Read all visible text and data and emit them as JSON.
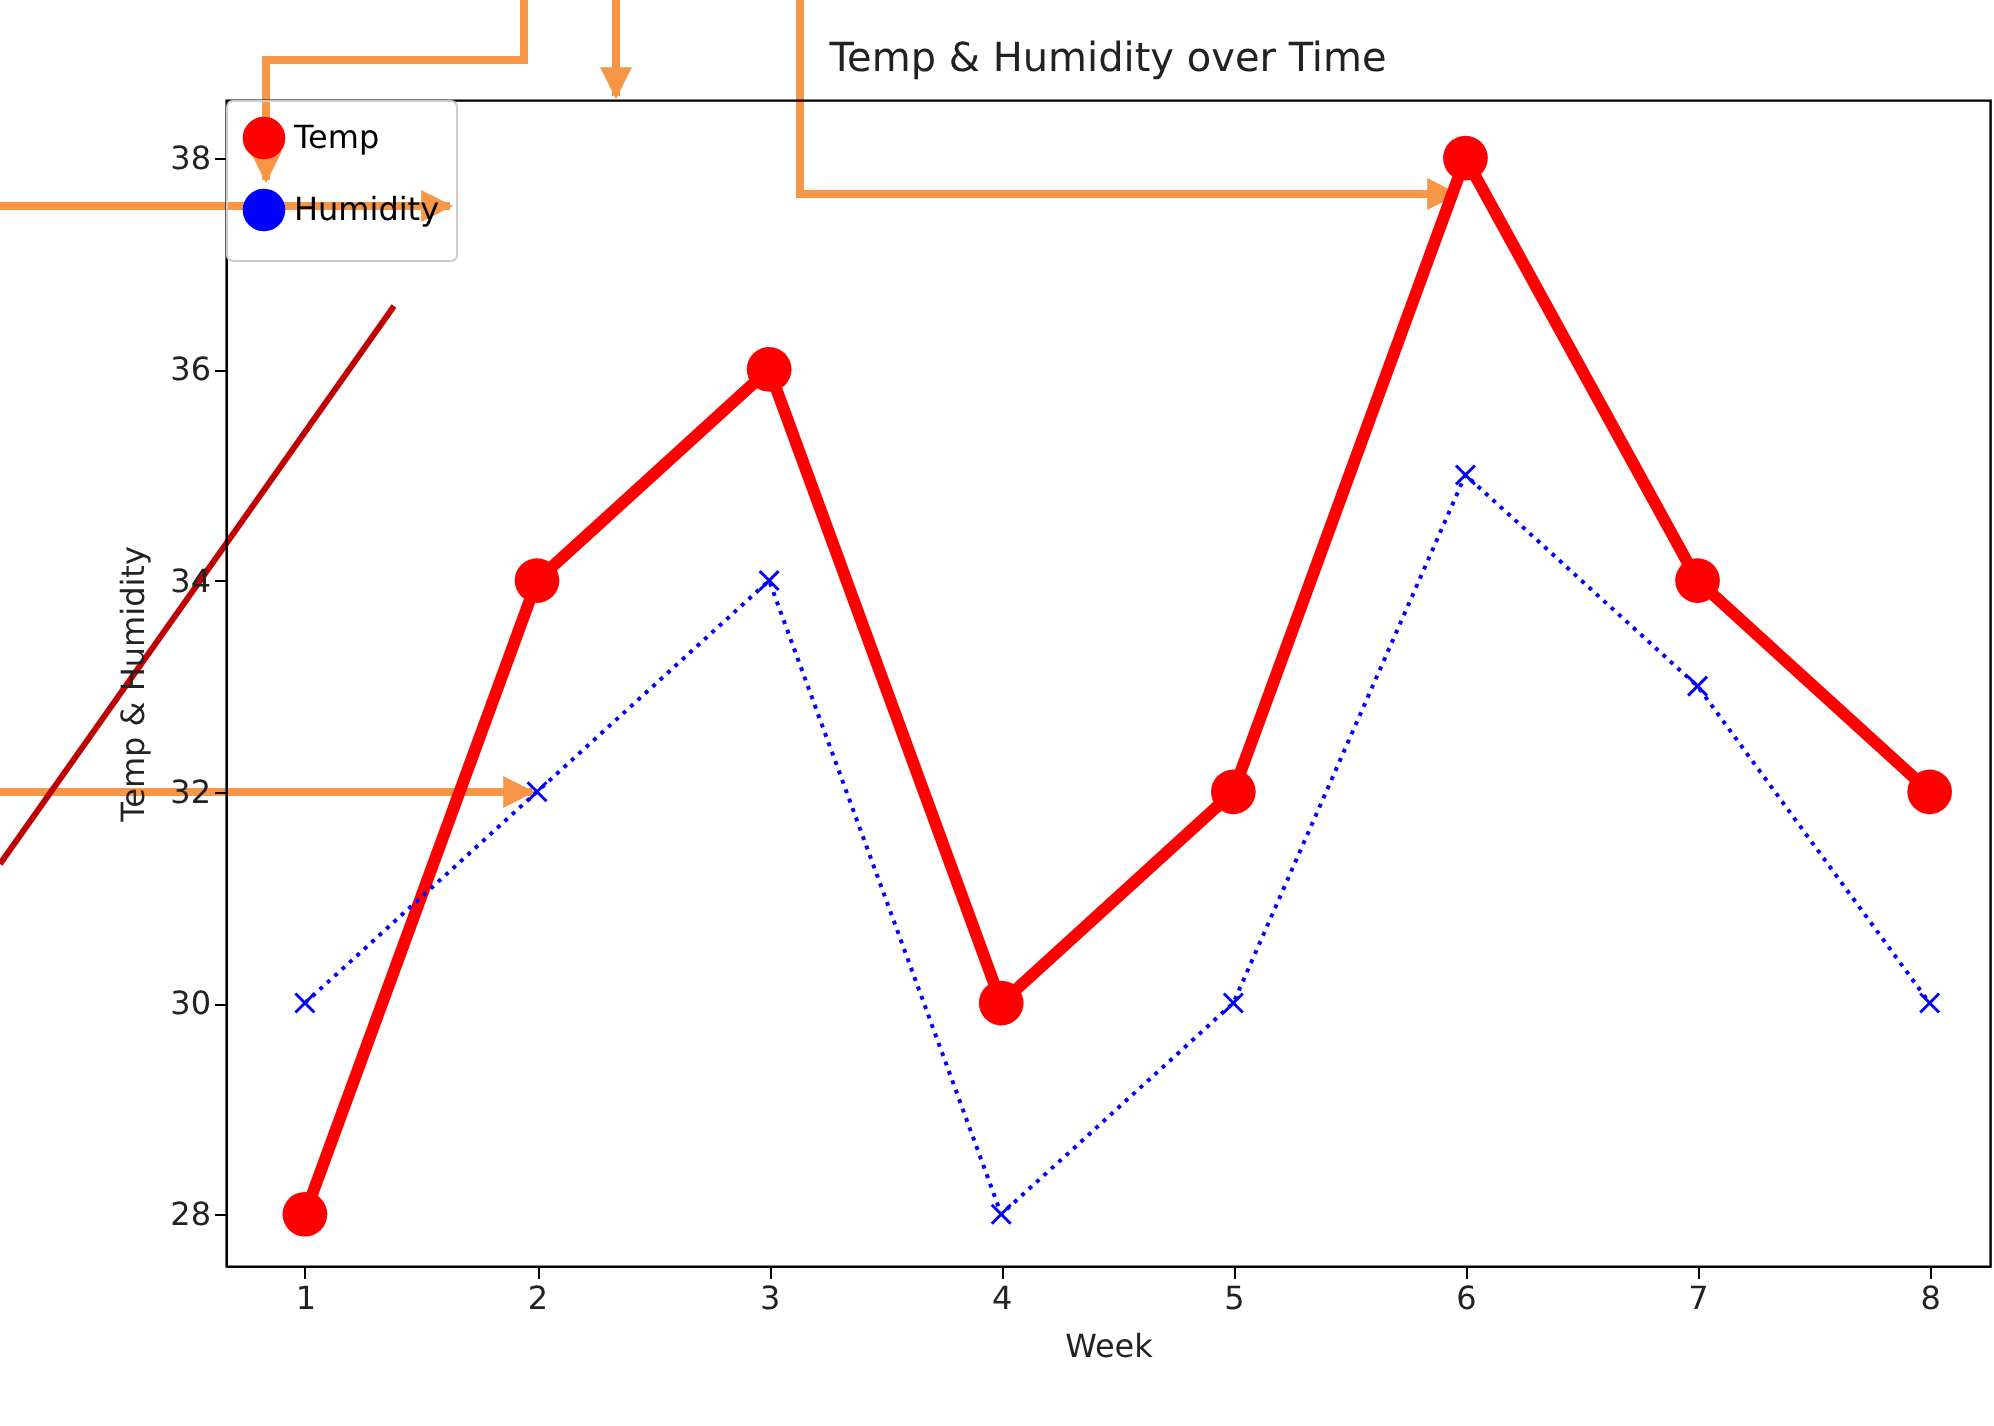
{
  "chart_data": {
    "type": "line",
    "title": "Temp & Humidity over Time",
    "xlabel": "Week",
    "ylabel": "Temp & Humidity",
    "x": [
      1,
      2,
      3,
      4,
      5,
      6,
      7,
      8
    ],
    "series": [
      {
        "name": "Temp",
        "color": "#ff0000",
        "values": [
          28,
          34,
          36,
          30,
          32,
          38,
          34,
          32
        ],
        "marker": "circle",
        "line_style": "solid"
      },
      {
        "name": "Humidity",
        "color": "#0000ff",
        "values": [
          30,
          32,
          34,
          28,
          30,
          35,
          33,
          30
        ],
        "marker": "cross",
        "line_style": "dotted"
      }
    ],
    "xlim": [
      0.66,
      8.26
    ],
    "xticks": [
      1,
      2,
      3,
      4,
      5,
      6,
      7,
      8
    ],
    "ylim": [
      27.51,
      38.55
    ],
    "yticks": [
      28,
      30,
      32,
      34,
      36,
      38
    ],
    "grid": false,
    "legend": "top left"
  }
}
